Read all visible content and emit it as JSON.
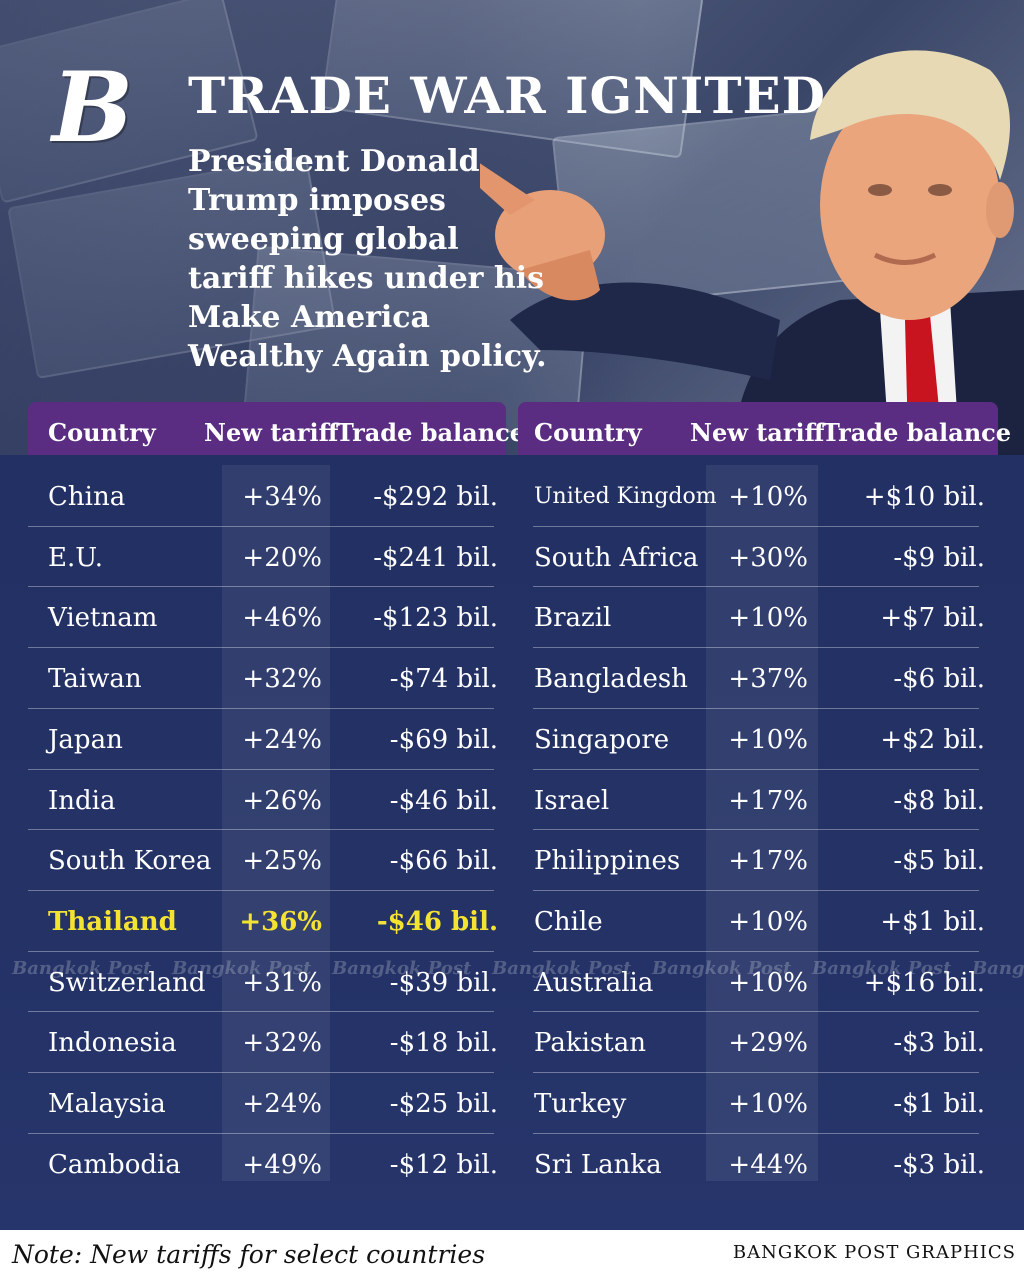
{
  "header": {
    "logo": "B",
    "title": "TRADE WAR IGNITED",
    "subtitle": "President Donald Trump imposes sweeping global tariff hikes under his Make America Wealthy Again policy."
  },
  "columns": [
    "Country",
    "New tariff",
    "Trade balance"
  ],
  "chart_data": {
    "type": "table",
    "columns": [
      "Country",
      "New tariff",
      "Trade balance"
    ],
    "highlight_color": "#f5e332",
    "left": [
      {
        "country": "China",
        "tariff": "+34%",
        "balance": "-$292 bil."
      },
      {
        "country": "E.U.",
        "tariff": "+20%",
        "balance": "-$241 bil."
      },
      {
        "country": "Vietnam",
        "tariff": "+46%",
        "balance": "-$123 bil."
      },
      {
        "country": "Taiwan",
        "tariff": "+32%",
        "balance": "-$74 bil."
      },
      {
        "country": "Japan",
        "tariff": "+24%",
        "balance": "-$69 bil."
      },
      {
        "country": "India",
        "tariff": "+26%",
        "balance": "-$46 bil."
      },
      {
        "country": "South Korea",
        "tariff": "+25%",
        "balance": "-$66 bil."
      },
      {
        "country": "Thailand",
        "tariff": "+36%",
        "balance": "-$46 bil.",
        "highlight": true
      },
      {
        "country": "Switzerland",
        "tariff": "+31%",
        "balance": "-$39 bil."
      },
      {
        "country": "Indonesia",
        "tariff": "+32%",
        "balance": "-$18 bil."
      },
      {
        "country": "Malaysia",
        "tariff": "+24%",
        "balance": "-$25 bil."
      },
      {
        "country": "Cambodia",
        "tariff": "+49%",
        "balance": "-$12 bil."
      }
    ],
    "right": [
      {
        "country": "United Kingdom",
        "tariff": "+10%",
        "balance": "+$10 bil."
      },
      {
        "country": "South Africa",
        "tariff": "+30%",
        "balance": "-$9 bil."
      },
      {
        "country": "Brazil",
        "tariff": "+10%",
        "balance": "+$7 bil."
      },
      {
        "country": "Bangladesh",
        "tariff": "+37%",
        "balance": "-$6 bil."
      },
      {
        "country": "Singapore",
        "tariff": "+10%",
        "balance": "+$2 bil."
      },
      {
        "country": "Israel",
        "tariff": "+17%",
        "balance": "-$8 bil."
      },
      {
        "country": "Philippines",
        "tariff": "+17%",
        "balance": "-$5 bil."
      },
      {
        "country": "Chile",
        "tariff": "+10%",
        "balance": "+$1 bil."
      },
      {
        "country": "Australia",
        "tariff": "+10%",
        "balance": "+$16 bil."
      },
      {
        "country": "Pakistan",
        "tariff": "+29%",
        "balance": "-$3 bil."
      },
      {
        "country": "Turkey",
        "tariff": "+10%",
        "balance": "-$1 bil."
      },
      {
        "country": "Sri Lanka",
        "tariff": "+44%",
        "balance": "-$3 bil."
      }
    ]
  },
  "watermark": "Bangkok Post",
  "footer": {
    "note": "Note: New tariffs for select countries",
    "credit": "BANGKOK POST GRAPHICS"
  }
}
